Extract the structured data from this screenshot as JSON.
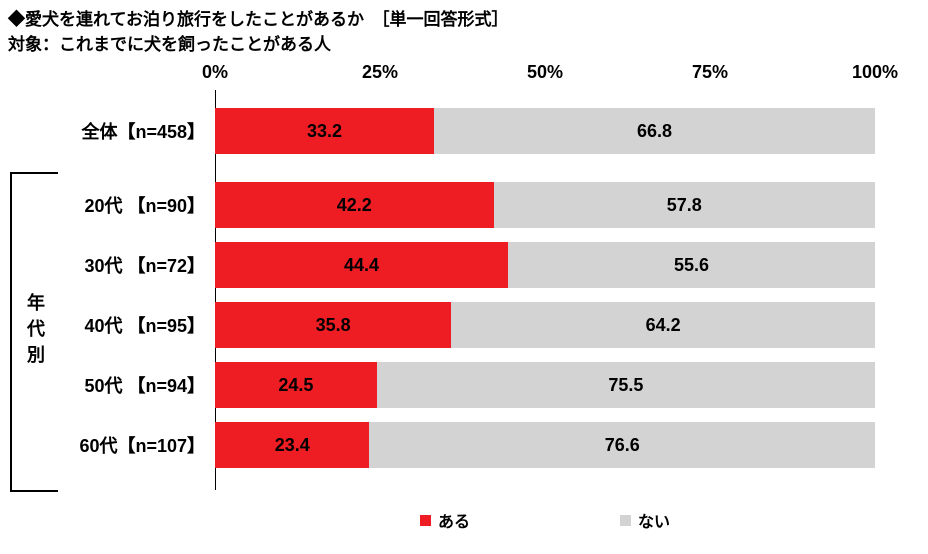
{
  "chart_data": {
    "type": "bar",
    "orientation": "horizontal_stacked",
    "title": "◆愛犬を連れてお泊り旅行をしたことがあるか　［単一回答形式］",
    "subtitle": "対象：これまでに犬を飼ったことがある人",
    "group_label": "年代別",
    "categories": [
      "全体【n=458】",
      "20代 【n=90】",
      "30代 【n=72】",
      "40代 【n=95】",
      "50代 【n=94】",
      "60代【n=107】"
    ],
    "series": [
      {
        "key": "yes",
        "name": "ある",
        "color": "#ee1c23",
        "values": [
          33.2,
          42.2,
          44.4,
          35.8,
          24.5,
          23.4
        ]
      },
      {
        "key": "no",
        "name": "ない",
        "color": "#d3d3d3",
        "values": [
          66.8,
          57.8,
          55.6,
          64.2,
          75.5,
          76.6
        ]
      }
    ],
    "x_ticks": [
      "0%",
      "25%",
      "50%",
      "75%",
      "100%"
    ],
    "xlim": [
      0,
      100
    ],
    "value_format": "one_decimal",
    "legend_position": "bottom",
    "grid": false
  }
}
